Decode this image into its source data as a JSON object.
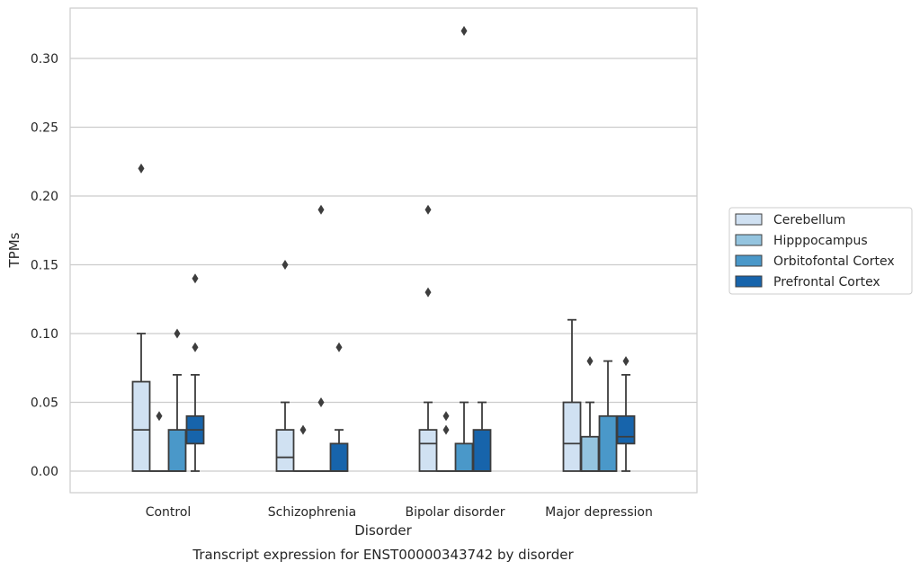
{
  "chart_data": {
    "type": "box",
    "xlabel": "Disorder",
    "ylabel": "TPMs",
    "caption": "Transcript expression for ENST00000343742 by disorder",
    "categories": [
      "Control",
      "Schizophrenia",
      "Bipolar disorder",
      "Major depression"
    ],
    "ylim": [
      -0.016,
      0.337
    ],
    "yticks": [
      0.0,
      0.05,
      0.1,
      0.15,
      0.2,
      0.25,
      0.3
    ],
    "ytick_labels": [
      "0.00",
      "0.05",
      "0.10",
      "0.15",
      "0.20",
      "0.25",
      "0.30"
    ],
    "grid": true,
    "legend_position": "right",
    "series": [
      {
        "name": "Cerebellum",
        "color": "#d0e1f2",
        "boxes": [
          {
            "whislo": 0.0,
            "q1": 0.0,
            "med": 0.03,
            "q3": 0.065,
            "whishi": 0.1,
            "fliers": [
              0.22
            ]
          },
          {
            "whislo": 0.0,
            "q1": 0.0,
            "med": 0.01,
            "q3": 0.03,
            "whishi": 0.05,
            "fliers": [
              0.15
            ]
          },
          {
            "whislo": 0.0,
            "q1": 0.0,
            "med": 0.02,
            "q3": 0.03,
            "whishi": 0.05,
            "fliers": [
              0.13,
              0.19
            ]
          },
          {
            "whislo": 0.0,
            "q1": 0.0,
            "med": 0.02,
            "q3": 0.05,
            "whishi": 0.11,
            "fliers": []
          }
        ]
      },
      {
        "name": "Hipppocampus",
        "color": "#94c4df",
        "boxes": [
          {
            "whislo": 0.0,
            "q1": 0.0,
            "med": 0.0,
            "q3": 0.0,
            "whishi": 0.0,
            "fliers": [
              0.04
            ]
          },
          {
            "whislo": 0.0,
            "q1": 0.0,
            "med": 0.0,
            "q3": 0.0,
            "whishi": 0.0,
            "fliers": [
              0.03
            ]
          },
          {
            "whislo": 0.0,
            "q1": 0.0,
            "med": 0.0,
            "q3": 0.0,
            "whishi": 0.0,
            "fliers": [
              0.03,
              0.04
            ]
          },
          {
            "whislo": 0.0,
            "q1": 0.0,
            "med": 0.0,
            "q3": 0.025,
            "whishi": 0.05,
            "fliers": [
              0.08
            ]
          }
        ]
      },
      {
        "name": "Orbitofontal Cortex",
        "color": "#4a98c9",
        "boxes": [
          {
            "whislo": 0.0,
            "q1": 0.0,
            "med": 0.0,
            "q3": 0.03,
            "whishi": 0.07,
            "fliers": [
              0.1
            ]
          },
          {
            "whislo": 0.0,
            "q1": 0.0,
            "med": 0.0,
            "q3": 0.0,
            "whishi": 0.0,
            "fliers": [
              0.05,
              0.19
            ]
          },
          {
            "whislo": 0.0,
            "q1": 0.0,
            "med": 0.0,
            "q3": 0.02,
            "whishi": 0.05,
            "fliers": [
              0.32
            ]
          },
          {
            "whislo": 0.0,
            "q1": 0.0,
            "med": 0.0,
            "q3": 0.04,
            "whishi": 0.08,
            "fliers": []
          }
        ]
      },
      {
        "name": "Prefrontal Cortex",
        "color": "#1764ab",
        "boxes": [
          {
            "whislo": 0.0,
            "q1": 0.02,
            "med": 0.03,
            "q3": 0.04,
            "whishi": 0.07,
            "fliers": [
              0.09,
              0.14
            ]
          },
          {
            "whislo": 0.0,
            "q1": 0.0,
            "med": 0.0,
            "q3": 0.02,
            "whishi": 0.03,
            "fliers": [
              0.09
            ]
          },
          {
            "whislo": 0.0,
            "q1": 0.0,
            "med": 0.0,
            "q3": 0.03,
            "whishi": 0.05,
            "fliers": []
          },
          {
            "whislo": 0.0,
            "q1": 0.02,
            "med": 0.025,
            "q3": 0.04,
            "whishi": 0.07,
            "fliers": [
              0.08
            ]
          }
        ]
      }
    ]
  }
}
